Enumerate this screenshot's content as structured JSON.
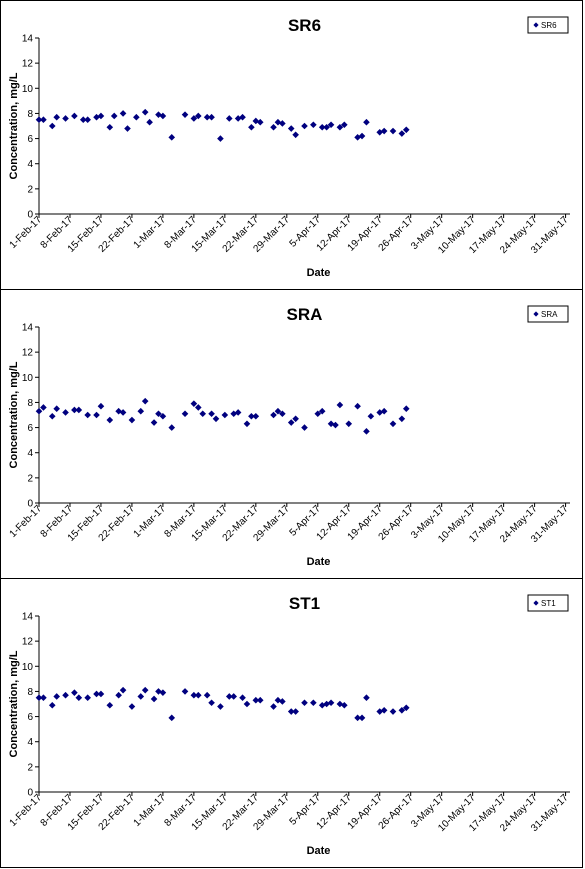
{
  "colors": {
    "marker": "#00007F",
    "axis": "#000000",
    "background": "#FFFFFF"
  },
  "chart_data": [
    {
      "type": "scatter",
      "title": "SR6",
      "xlabel": "Date",
      "ylabel": "Concentration, mg/L",
      "ylim": [
        0,
        14
      ],
      "yticks": [
        "0",
        "2",
        "4",
        "6",
        "8",
        "10",
        "12",
        "14"
      ],
      "xlim": [
        "2017-02-01",
        "2017-06-01"
      ],
      "xticks": [
        "1-Feb-17",
        "8-Feb-17",
        "15-Feb-17",
        "22-Feb-17",
        "1-Mar-17",
        "8-Mar-17",
        "15-Mar-17",
        "22-Mar-17",
        "29-Mar-17",
        "5-Apr-17",
        "12-Apr-17",
        "19-Apr-17",
        "26-Apr-17",
        "3-May-17",
        "10-May-17",
        "17-May-17",
        "24-May-17",
        "31-May-17"
      ],
      "grid": false,
      "legend_position": "top-right",
      "series": [
        {
          "name": "SR6",
          "points": [
            [
              "2017-02-01",
              7.5
            ],
            [
              "2017-02-02",
              7.5
            ],
            [
              "2017-02-04",
              7.0
            ],
            [
              "2017-02-05",
              7.7
            ],
            [
              "2017-02-07",
              7.6
            ],
            [
              "2017-02-09",
              7.8
            ],
            [
              "2017-02-11",
              7.5
            ],
            [
              "2017-02-12",
              7.5
            ],
            [
              "2017-02-14",
              7.7
            ],
            [
              "2017-02-15",
              7.8
            ],
            [
              "2017-02-17",
              6.9
            ],
            [
              "2017-02-18",
              7.8
            ],
            [
              "2017-02-20",
              8.0
            ],
            [
              "2017-02-21",
              6.8
            ],
            [
              "2017-02-23",
              7.7
            ],
            [
              "2017-02-25",
              8.1
            ],
            [
              "2017-02-26",
              7.3
            ],
            [
              "2017-02-28",
              7.9
            ],
            [
              "2017-03-01",
              7.8
            ],
            [
              "2017-03-03",
              6.1
            ],
            [
              "2017-03-06",
              7.9
            ],
            [
              "2017-03-08",
              7.6
            ],
            [
              "2017-03-09",
              7.8
            ],
            [
              "2017-03-11",
              7.7
            ],
            [
              "2017-03-12",
              7.7
            ],
            [
              "2017-03-14",
              6.0
            ],
            [
              "2017-03-16",
              7.6
            ],
            [
              "2017-03-18",
              7.6
            ],
            [
              "2017-03-19",
              7.7
            ],
            [
              "2017-03-21",
              6.9
            ],
            [
              "2017-03-22",
              7.4
            ],
            [
              "2017-03-23",
              7.3
            ],
            [
              "2017-03-26",
              6.9
            ],
            [
              "2017-03-27",
              7.3
            ],
            [
              "2017-03-28",
              7.2
            ],
            [
              "2017-03-30",
              6.8
            ],
            [
              "2017-03-31",
              6.3
            ],
            [
              "2017-04-02",
              7.0
            ],
            [
              "2017-04-04",
              7.1
            ],
            [
              "2017-04-06",
              6.9
            ],
            [
              "2017-04-07",
              6.9
            ],
            [
              "2017-04-08",
              7.1
            ],
            [
              "2017-04-10",
              6.9
            ],
            [
              "2017-04-11",
              7.1
            ],
            [
              "2017-04-14",
              6.1
            ],
            [
              "2017-04-15",
              6.2
            ],
            [
              "2017-04-16",
              7.3
            ],
            [
              "2017-04-19",
              6.5
            ],
            [
              "2017-04-20",
              6.6
            ],
            [
              "2017-04-22",
              6.6
            ],
            [
              "2017-04-24",
              6.4
            ],
            [
              "2017-04-25",
              6.7
            ]
          ]
        }
      ]
    },
    {
      "type": "scatter",
      "title": "SRA",
      "xlabel": "Date",
      "ylabel": "Concentration, mg/L",
      "ylim": [
        0,
        14
      ],
      "yticks": [
        "0",
        "2",
        "4",
        "6",
        "8",
        "10",
        "12",
        "14"
      ],
      "xlim": [
        "2017-02-01",
        "2017-06-01"
      ],
      "xticks": [
        "1-Feb-17",
        "8-Feb-17",
        "15-Feb-17",
        "22-Feb-17",
        "1-Mar-17",
        "8-Mar-17",
        "15-Mar-17",
        "22-Mar-17",
        "29-Mar-17",
        "5-Apr-17",
        "12-Apr-17",
        "19-Apr-17",
        "26-Apr-17",
        "3-May-17",
        "10-May-17",
        "17-May-17",
        "24-May-17",
        "31-May-17"
      ],
      "grid": false,
      "legend_position": "top-right",
      "series": [
        {
          "name": "SRA",
          "points": [
            [
              "2017-02-01",
              7.3
            ],
            [
              "2017-02-02",
              7.6
            ],
            [
              "2017-02-04",
              6.9
            ],
            [
              "2017-02-05",
              7.5
            ],
            [
              "2017-02-07",
              7.2
            ],
            [
              "2017-02-09",
              7.4
            ],
            [
              "2017-02-10",
              7.4
            ],
            [
              "2017-02-12",
              7.0
            ],
            [
              "2017-02-14",
              7.0
            ],
            [
              "2017-02-15",
              7.7
            ],
            [
              "2017-02-17",
              6.6
            ],
            [
              "2017-02-19",
              7.3
            ],
            [
              "2017-02-20",
              7.2
            ],
            [
              "2017-02-22",
              6.6
            ],
            [
              "2017-02-24",
              7.3
            ],
            [
              "2017-02-25",
              8.1
            ],
            [
              "2017-02-27",
              6.4
            ],
            [
              "2017-02-28",
              7.1
            ],
            [
              "2017-03-01",
              6.9
            ],
            [
              "2017-03-03",
              6.0
            ],
            [
              "2017-03-06",
              7.1
            ],
            [
              "2017-03-08",
              7.9
            ],
            [
              "2017-03-09",
              7.6
            ],
            [
              "2017-03-10",
              7.1
            ],
            [
              "2017-03-12",
              7.1
            ],
            [
              "2017-03-13",
              6.7
            ],
            [
              "2017-03-15",
              7.0
            ],
            [
              "2017-03-17",
              7.1
            ],
            [
              "2017-03-18",
              7.2
            ],
            [
              "2017-03-20",
              6.3
            ],
            [
              "2017-03-21",
              6.9
            ],
            [
              "2017-03-22",
              6.9
            ],
            [
              "2017-03-26",
              7.0
            ],
            [
              "2017-03-27",
              7.3
            ],
            [
              "2017-03-28",
              7.1
            ],
            [
              "2017-03-30",
              6.4
            ],
            [
              "2017-03-31",
              6.7
            ],
            [
              "2017-04-02",
              6.0
            ],
            [
              "2017-04-05",
              7.1
            ],
            [
              "2017-04-06",
              7.3
            ],
            [
              "2017-04-08",
              6.3
            ],
            [
              "2017-04-09",
              6.2
            ],
            [
              "2017-04-10",
              7.8
            ],
            [
              "2017-04-12",
              6.3
            ],
            [
              "2017-04-14",
              7.7
            ],
            [
              "2017-04-16",
              5.7
            ],
            [
              "2017-04-17",
              6.9
            ],
            [
              "2017-04-19",
              7.2
            ],
            [
              "2017-04-20",
              7.3
            ],
            [
              "2017-04-22",
              6.3
            ],
            [
              "2017-04-24",
              6.7
            ],
            [
              "2017-04-25",
              7.5
            ]
          ]
        }
      ]
    },
    {
      "type": "scatter",
      "title": "ST1",
      "xlabel": "Date",
      "ylabel": "Concentration, mg/L",
      "ylim": [
        0,
        14
      ],
      "yticks": [
        "0",
        "2",
        "4",
        "6",
        "8",
        "10",
        "12",
        "14"
      ],
      "xlim": [
        "2017-02-01",
        "2017-06-01"
      ],
      "xticks": [
        "1-Feb-17",
        "8-Feb-17",
        "15-Feb-17",
        "22-Feb-17",
        "1-Mar-17",
        "8-Mar-17",
        "15-Mar-17",
        "22-Mar-17",
        "29-Mar-17",
        "5-Apr-17",
        "12-Apr-17",
        "19-Apr-17",
        "26-Apr-17",
        "3-May-17",
        "10-May-17",
        "17-May-17",
        "24-May-17",
        "31-May-17"
      ],
      "grid": false,
      "legend_position": "top-right",
      "series": [
        {
          "name": "ST1",
          "points": [
            [
              "2017-02-01",
              7.5
            ],
            [
              "2017-02-02",
              7.5
            ],
            [
              "2017-02-04",
              6.9
            ],
            [
              "2017-02-05",
              7.6
            ],
            [
              "2017-02-07",
              7.7
            ],
            [
              "2017-02-09",
              7.9
            ],
            [
              "2017-02-10",
              7.5
            ],
            [
              "2017-02-12",
              7.5
            ],
            [
              "2017-02-14",
              7.8
            ],
            [
              "2017-02-15",
              7.8
            ],
            [
              "2017-02-17",
              6.9
            ],
            [
              "2017-02-19",
              7.7
            ],
            [
              "2017-02-20",
              8.1
            ],
            [
              "2017-02-22",
              6.8
            ],
            [
              "2017-02-24",
              7.6
            ],
            [
              "2017-02-25",
              8.1
            ],
            [
              "2017-02-27",
              7.4
            ],
            [
              "2017-02-28",
              8.0
            ],
            [
              "2017-03-01",
              7.9
            ],
            [
              "2017-03-03",
              5.9
            ],
            [
              "2017-03-06",
              8.0
            ],
            [
              "2017-03-08",
              7.7
            ],
            [
              "2017-03-09",
              7.7
            ],
            [
              "2017-03-11",
              7.7
            ],
            [
              "2017-03-12",
              7.1
            ],
            [
              "2017-03-14",
              6.8
            ],
            [
              "2017-03-16",
              7.6
            ],
            [
              "2017-03-17",
              7.6
            ],
            [
              "2017-03-19",
              7.5
            ],
            [
              "2017-03-20",
              7.0
            ],
            [
              "2017-03-22",
              7.3
            ],
            [
              "2017-03-23",
              7.3
            ],
            [
              "2017-03-26",
              6.8
            ],
            [
              "2017-03-27",
              7.3
            ],
            [
              "2017-03-28",
              7.2
            ],
            [
              "2017-03-30",
              6.4
            ],
            [
              "2017-03-31",
              6.4
            ],
            [
              "2017-04-02",
              7.1
            ],
            [
              "2017-04-04",
              7.1
            ],
            [
              "2017-04-06",
              6.9
            ],
            [
              "2017-04-07",
              7.0
            ],
            [
              "2017-04-08",
              7.1
            ],
            [
              "2017-04-10",
              7.0
            ],
            [
              "2017-04-11",
              6.9
            ],
            [
              "2017-04-14",
              5.9
            ],
            [
              "2017-04-15",
              5.9
            ],
            [
              "2017-04-16",
              7.5
            ],
            [
              "2017-04-19",
              6.4
            ],
            [
              "2017-04-20",
              6.5
            ],
            [
              "2017-04-22",
              6.4
            ],
            [
              "2017-04-24",
              6.5
            ],
            [
              "2017-04-25",
              6.7
            ]
          ]
        }
      ]
    }
  ]
}
